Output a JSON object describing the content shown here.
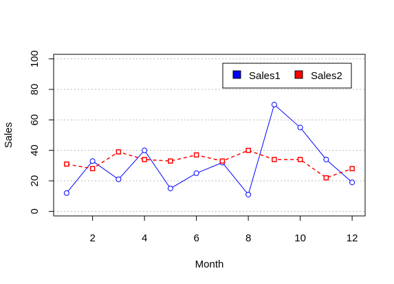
{
  "chart_data": {
    "type": "line",
    "title": "",
    "xlabel": "Month",
    "ylabel": "Sales",
    "x": [
      1,
      2,
      3,
      4,
      5,
      6,
      7,
      8,
      9,
      10,
      11,
      12
    ],
    "xlim": [
      0.5,
      12.5
    ],
    "ylim": [
      -3,
      103
    ],
    "xticks": [
      2,
      4,
      6,
      8,
      10,
      12
    ],
    "yticks": [
      0,
      20,
      40,
      60,
      80,
      100
    ],
    "grid": "horizontal dotted",
    "legend_position": "top-right",
    "series": [
      {
        "name": "Sales1",
        "color": "#0000ff",
        "line_style": "solid",
        "marker": "circle",
        "values": [
          12,
          33,
          21,
          40,
          15,
          25,
          32,
          11,
          70,
          55,
          34,
          19
        ]
      },
      {
        "name": "Sales2",
        "color": "#ff0000",
        "line_style": "dashed",
        "marker": "square",
        "values": [
          31,
          28,
          39,
          34,
          33,
          37,
          33,
          40,
          34,
          34,
          22,
          28
        ]
      }
    ]
  }
}
